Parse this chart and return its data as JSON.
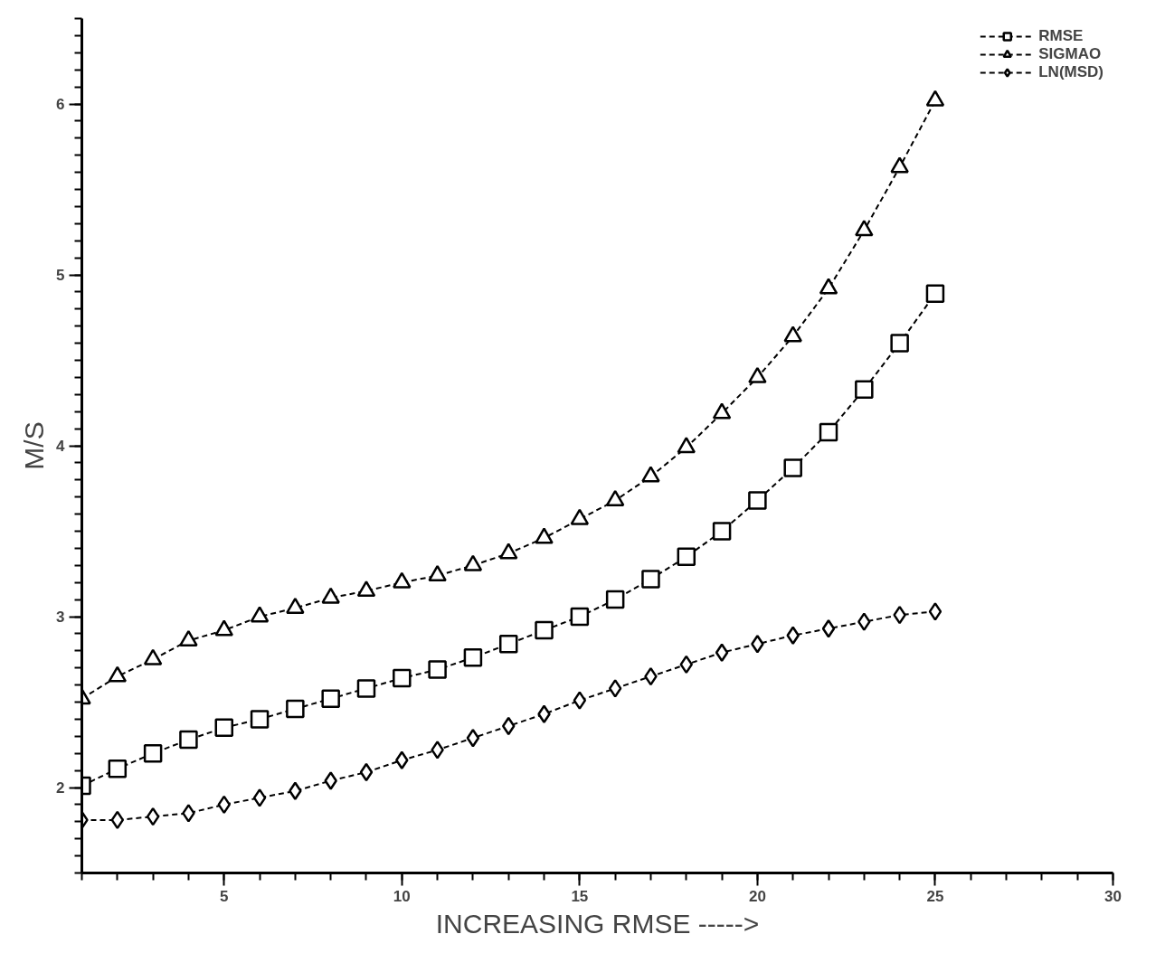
{
  "chart_data": {
    "type": "line",
    "xlabel": "INCREASING RMSE ----->",
    "ylabel": "M/S",
    "x": [
      1,
      2,
      3,
      4,
      5,
      6,
      7,
      8,
      9,
      10,
      11,
      12,
      13,
      14,
      15,
      16,
      17,
      18,
      19,
      20,
      21,
      22,
      23,
      24,
      25
    ],
    "series": [
      {
        "name": "RMSE",
        "color": "#000000",
        "marker": "square",
        "values": [
          2.01,
          2.11,
          2.2,
          2.28,
          2.35,
          2.4,
          2.46,
          2.52,
          2.58,
          2.64,
          2.69,
          2.76,
          2.84,
          2.92,
          3.0,
          3.1,
          3.22,
          3.35,
          3.5,
          3.68,
          3.87,
          4.08,
          4.33,
          4.6,
          4.89
        ]
      },
      {
        "name": "SIGMAO",
        "color": "#000000",
        "marker": "triangle",
        "values": [
          2.52,
          2.65,
          2.75,
          2.86,
          2.92,
          3.0,
          3.05,
          3.11,
          3.15,
          3.2,
          3.24,
          3.3,
          3.37,
          3.46,
          3.57,
          3.68,
          3.82,
          3.99,
          4.19,
          4.4,
          4.64,
          4.92,
          5.26,
          5.63,
          6.02
        ]
      },
      {
        "name": "LN(MSD)",
        "color": "#000000",
        "marker": "diamond",
        "values": [
          1.81,
          1.81,
          1.83,
          1.85,
          1.9,
          1.94,
          1.98,
          2.04,
          2.09,
          2.16,
          2.22,
          2.29,
          2.36,
          2.43,
          2.51,
          2.58,
          2.65,
          2.72,
          2.79,
          2.84,
          2.89,
          2.93,
          2.97,
          3.01,
          3.03
        ]
      }
    ],
    "xlim": [
      1,
      30
    ],
    "xticks": [
      5,
      10,
      15,
      20,
      25,
      30
    ],
    "ylim": [
      1.5,
      6.5
    ],
    "yticks": [
      2,
      3,
      4,
      5,
      6
    ],
    "grid": false,
    "legend": "top right",
    "line_style": "dashed"
  }
}
